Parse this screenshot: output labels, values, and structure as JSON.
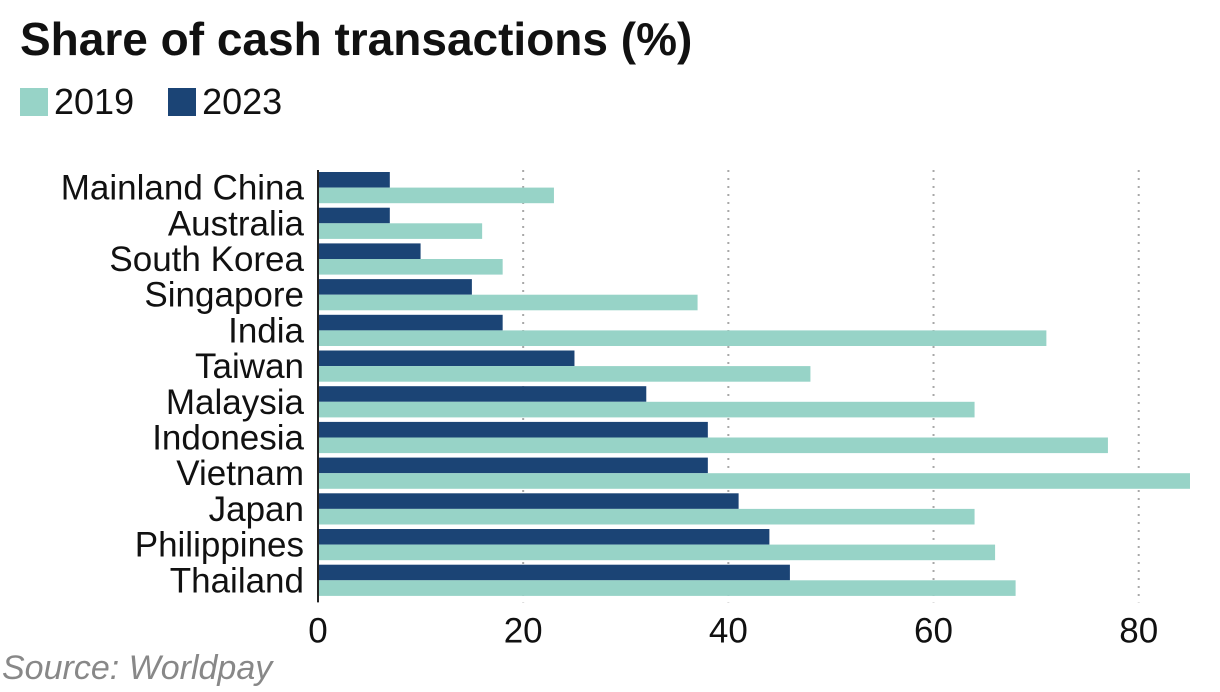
{
  "chart_data": {
    "type": "bar",
    "orientation": "horizontal",
    "title": "Share of cash transactions (%)",
    "xlabel": "",
    "ylabel": "",
    "categories": [
      "Mainland China",
      "Australia",
      "South Korea",
      "Singapore",
      "India",
      "Taiwan",
      "Malaysia",
      "Indonesia",
      "Vietnam",
      "Japan",
      "Philippines",
      "Thailand"
    ],
    "series": [
      {
        "name": "2019",
        "color": "#97d3c7",
        "values": [
          23,
          16,
          18,
          37,
          71,
          48,
          64,
          77,
          85,
          64,
          66,
          68
        ]
      },
      {
        "name": "2023",
        "color": "#1b4475",
        "values": [
          7,
          7,
          10,
          15,
          18,
          25,
          32,
          38,
          38,
          41,
          44,
          46
        ]
      }
    ],
    "xlim": [
      0,
      85
    ],
    "xticks": [
      0,
      20,
      40,
      60,
      80
    ],
    "grid": "vertical dotted",
    "legend_position": "top-left"
  },
  "source": "Source: Worldpay"
}
